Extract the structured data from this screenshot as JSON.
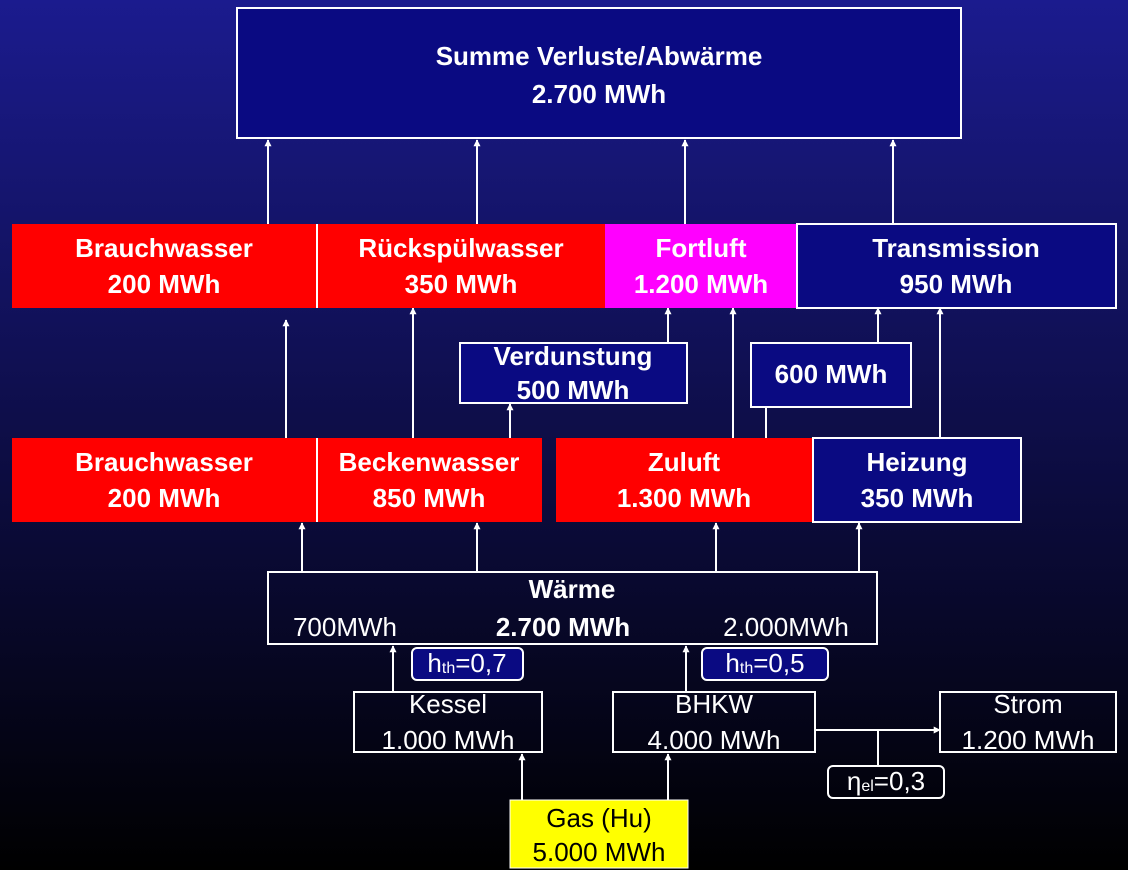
{
  "total": {
    "title": "Summe Verluste/Abwärme",
    "value": "2.700 MWh"
  },
  "losses": [
    {
      "title": "Brauchwasser",
      "value": "200 MWh"
    },
    {
      "title": "Rückspülwasser",
      "value": "350 MWh"
    },
    {
      "title": "Fortluft",
      "value": "1.200 MWh"
    },
    {
      "title": "Transmission",
      "value": "950 MWh"
    }
  ],
  "intermediate": [
    {
      "title": "Verdunstung",
      "value": "500 MWh"
    },
    {
      "value": "600 MWh"
    }
  ],
  "consumers": [
    {
      "title": "Brauchwasser",
      "value": "200 MWh"
    },
    {
      "title": "Beckenwasser",
      "value": "850 MWh"
    },
    {
      "title": "Zuluft",
      "value": "1.300 MWh"
    },
    {
      "title": "Heizung",
      "value": "350 MWh"
    }
  ],
  "heat": {
    "title": "Wärme",
    "left": "700MWh",
    "value": "2.700 MWh",
    "right": "2.000MWh"
  },
  "generators": [
    {
      "title": "Kessel",
      "value": "1.000 MWh"
    },
    {
      "title": "BHKW",
      "value": "4.000 MWh"
    },
    {
      "title": "Strom",
      "value": "1.200 MWh"
    }
  ],
  "efficiencies": [
    {
      "symbol": "h",
      "sub": "th",
      "value": "=0,7"
    },
    {
      "symbol": "h",
      "sub": "th",
      "value": "=0,5"
    },
    {
      "symbol": "η",
      "sub": "el",
      "value": "=0,3"
    }
  ],
  "source": {
    "title": "Gas (Hu)",
    "value": "5.000 MWh"
  }
}
